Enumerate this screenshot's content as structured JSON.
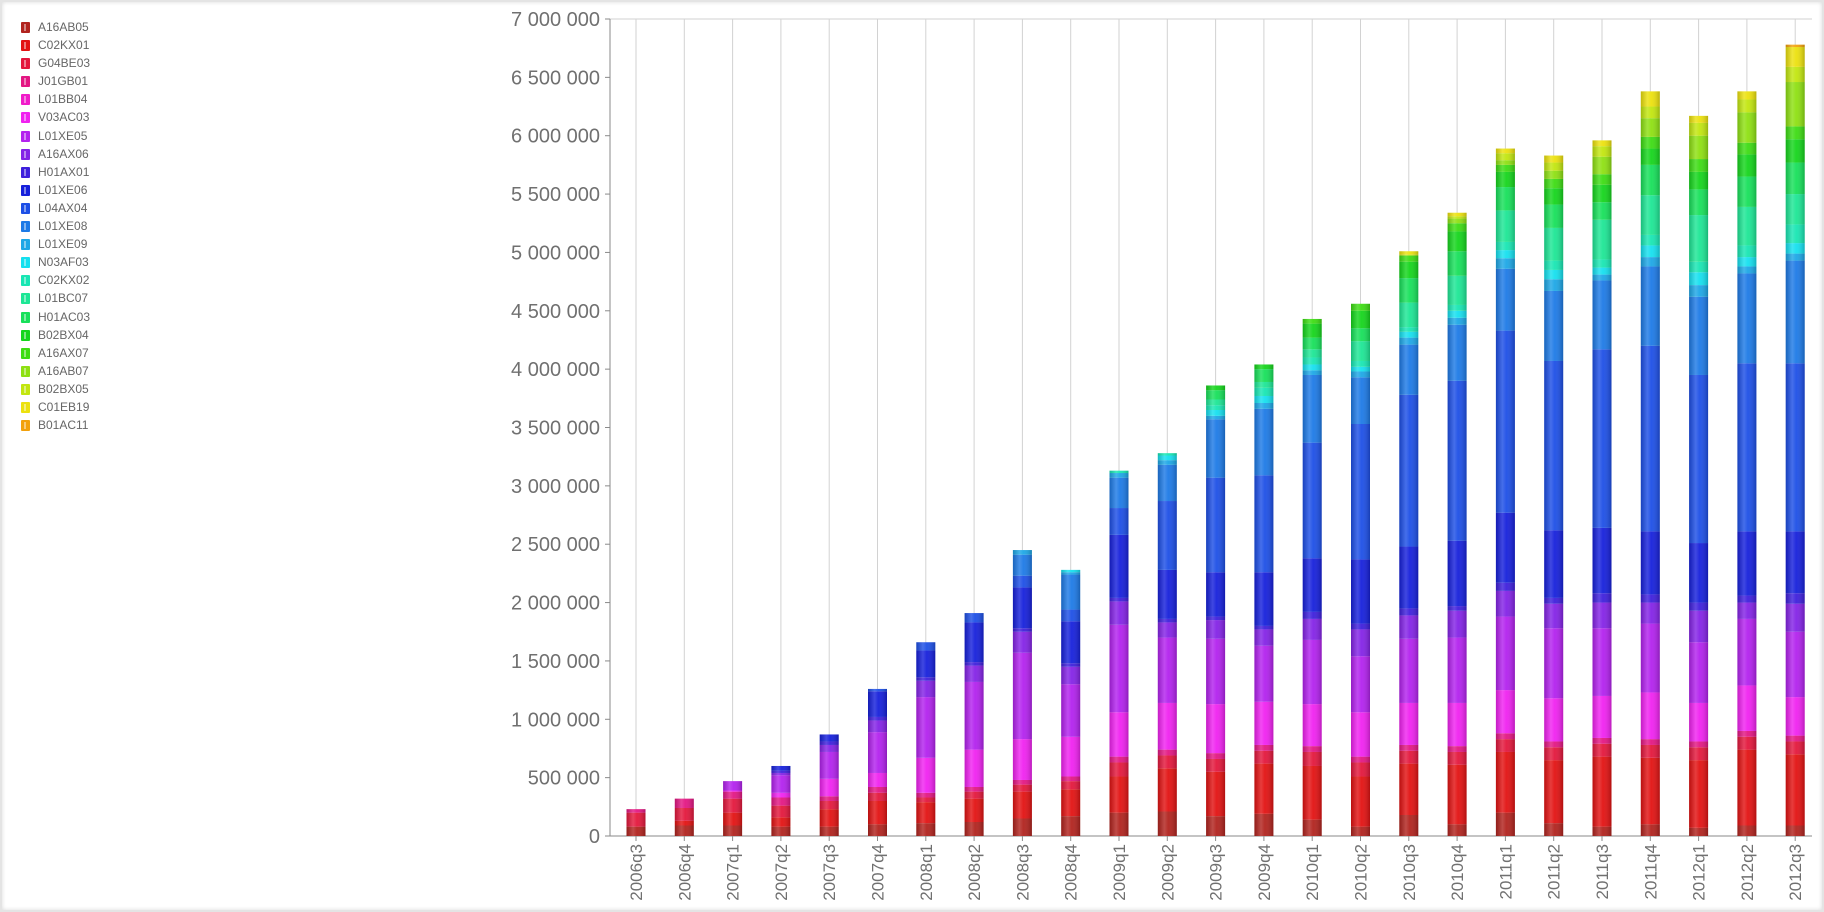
{
  "chart_data": {
    "type": "bar",
    "stacked": true,
    "title": "",
    "xlabel": "",
    "ylabel": "",
    "ylim": [
      0,
      7000000
    ],
    "y_ticks": [
      0,
      500000,
      1000000,
      1500000,
      2000000,
      2500000,
      3000000,
      3500000,
      4000000,
      4500000,
      5000000,
      5500000,
      6000000,
      6500000,
      7000000
    ],
    "y_tick_labels": [
      "0",
      "500 000",
      "1 000 000",
      "1 500 000",
      "2 000 000",
      "2 500 000",
      "3 000 000",
      "3 500 000",
      "4 000 000",
      "4 500 000",
      "5 000 000",
      "5 500 000",
      "6 000 000",
      "6 500 000",
      "7 000 000"
    ],
    "grid": "vertical",
    "legend_position": "top-left",
    "categories": [
      "2006q3",
      "2006q4",
      "2007q1",
      "2007q2",
      "2007q3",
      "2007q4",
      "2008q1",
      "2008q2",
      "2008q3",
      "2008q4",
      "2009q1",
      "2009q2",
      "2009q3",
      "2009q4",
      "2010q1",
      "2010q2",
      "2010q3",
      "2010q4",
      "2011q1",
      "2011q2",
      "2011q3",
      "2011q4",
      "2012q1",
      "2012q2",
      "2012q3"
    ],
    "series": [
      {
        "name": "A16AB05",
        "color": "#b1231e",
        "values": [
          80000,
          90000,
          90000,
          80000,
          80000,
          100000,
          110000,
          120000,
          150000,
          170000,
          200000,
          210000,
          170000,
          190000,
          140000,
          80000,
          180000,
          100000,
          200000,
          110000,
          80000,
          100000,
          70000,
          90000,
          90000
        ]
      },
      {
        "name": "C02KX01",
        "color": "#e21212",
        "values": [
          0,
          40000,
          110000,
          80000,
          150000,
          200000,
          180000,
          200000,
          230000,
          230000,
          310000,
          370000,
          380000,
          430000,
          460000,
          430000,
          440000,
          510000,
          520000,
          540000,
          600000,
          570000,
          580000,
          650000,
          610000
        ]
      },
      {
        "name": "G04BE03",
        "color": "#e3173c",
        "values": [
          120000,
          110000,
          120000,
          100000,
          70000,
          70000,
          40000,
          60000,
          60000,
          70000,
          120000,
          110000,
          110000,
          110000,
          120000,
          120000,
          110000,
          110000,
          110000,
          110000,
          110000,
          110000,
          110000,
          110000,
          110000
        ]
      },
      {
        "name": "J01GB01",
        "color": "#e31783",
        "values": [
          30000,
          80000,
          60000,
          70000,
          40000,
          50000,
          40000,
          40000,
          40000,
          40000,
          50000,
          50000,
          50000,
          50000,
          50000,
          50000,
          50000,
          50000,
          50000,
          50000,
          50000,
          50000,
          50000,
          50000,
          50000
        ]
      },
      {
        "name": "L01BB04",
        "color": "#f01bc9",
        "values": [
          0,
          0,
          0,
          0,
          0,
          0,
          0,
          0,
          0,
          0,
          0,
          0,
          0,
          0,
          0,
          0,
          0,
          0,
          0,
          0,
          0,
          0,
          0,
          0,
          0
        ]
      },
      {
        "name": "V03AC03",
        "color": "#f022f0",
        "values": [
          0,
          0,
          10000,
          40000,
          150000,
          120000,
          300000,
          320000,
          350000,
          340000,
          380000,
          400000,
          420000,
          370000,
          360000,
          380000,
          360000,
          370000,
          370000,
          370000,
          360000,
          400000,
          330000,
          390000,
          330000
        ]
      },
      {
        "name": "L01XE05",
        "color": "#b322ee",
        "values": [
          0,
          0,
          80000,
          150000,
          230000,
          350000,
          520000,
          580000,
          740000,
          450000,
          750000,
          560000,
          560000,
          480000,
          550000,
          480000,
          550000,
          560000,
          630000,
          600000,
          580000,
          590000,
          520000,
          570000,
          560000
        ]
      },
      {
        "name": "A16AX06",
        "color": "#8423e6",
        "values": [
          0,
          0,
          0,
          20000,
          60000,
          100000,
          140000,
          140000,
          180000,
          150000,
          200000,
          130000,
          160000,
          140000,
          180000,
          230000,
          200000,
          230000,
          220000,
          210000,
          220000,
          180000,
          270000,
          140000,
          240000
        ]
      },
      {
        "name": "H01AX01",
        "color": "#3e1fdc",
        "values": [
          0,
          0,
          0,
          20000,
          30000,
          30000,
          30000,
          30000,
          30000,
          30000,
          30000,
          30000,
          30000,
          30000,
          60000,
          50000,
          60000,
          40000,
          70000,
          50000,
          80000,
          70000,
          70000,
          60000,
          90000
        ]
      },
      {
        "name": "L01XE06",
        "color": "#1620db",
        "values": [
          0,
          0,
          0,
          40000,
          60000,
          220000,
          230000,
          340000,
          350000,
          360000,
          540000,
          420000,
          380000,
          460000,
          460000,
          550000,
          530000,
          560000,
          600000,
          580000,
          560000,
          540000,
          510000,
          550000,
          530000
        ]
      },
      {
        "name": "L04AX04",
        "color": "#1d4fe6",
        "values": [
          0,
          0,
          0,
          0,
          0,
          20000,
          70000,
          80000,
          100000,
          100000,
          230000,
          590000,
          810000,
          830000,
          990000,
          1160000,
          1300000,
          1370000,
          1560000,
          1450000,
          1530000,
          1590000,
          1440000,
          1440000,
          1440000
        ]
      },
      {
        "name": "L01XE08",
        "color": "#1d7ae6",
        "values": [
          0,
          0,
          0,
          0,
          0,
          0,
          0,
          0,
          180000,
          300000,
          260000,
          310000,
          500000,
          570000,
          580000,
          400000,
          430000,
          480000,
          530000,
          600000,
          590000,
          680000,
          670000,
          770000,
          880000
        ]
      },
      {
        "name": "L01XE09",
        "color": "#1da7e6",
        "values": [
          0,
          0,
          0,
          0,
          0,
          0,
          0,
          0,
          40000,
          20000,
          40000,
          40000,
          30000,
          50000,
          40000,
          50000,
          60000,
          60000,
          90000,
          100000,
          50000,
          80000,
          100000,
          60000,
          60000
        ]
      },
      {
        "name": "N03AF03",
        "color": "#15e0ef",
        "values": [
          0,
          0,
          0,
          0,
          0,
          0,
          0,
          0,
          0,
          20000,
          0,
          40000,
          50000,
          60000,
          50000,
          40000,
          50000,
          60000,
          70000,
          80000,
          60000,
          100000,
          110000,
          80000,
          90000
        ]
      },
      {
        "name": "C02KX02",
        "color": "#18e6b3",
        "values": [
          0,
          0,
          0,
          0,
          0,
          0,
          0,
          0,
          0,
          0,
          20000,
          20000,
          40000,
          70000,
          60000,
          50000,
          40000,
          50000,
          70000,
          80000,
          70000,
          90000,
          90000,
          100000,
          160000
        ]
      },
      {
        "name": "L01BC07",
        "color": "#1de695",
        "values": [
          0,
          0,
          0,
          0,
          0,
          0,
          0,
          0,
          0,
          0,
          0,
          0,
          50000,
          50000,
          70000,
          170000,
          210000,
          250000,
          270000,
          280000,
          340000,
          340000,
          400000,
          330000,
          260000
        ]
      },
      {
        "name": "H01AC03",
        "color": "#17e05a",
        "values": [
          0,
          0,
          0,
          0,
          0,
          0,
          0,
          0,
          0,
          0,
          0,
          0,
          80000,
          110000,
          100000,
          110000,
          210000,
          210000,
          200000,
          200000,
          150000,
          260000,
          220000,
          260000,
          270000
        ]
      },
      {
        "name": "B02BX04",
        "color": "#15d51c",
        "values": [
          0,
          0,
          0,
          0,
          0,
          0,
          0,
          0,
          0,
          0,
          0,
          0,
          40000,
          40000,
          120000,
          150000,
          140000,
          170000,
          130000,
          140000,
          150000,
          140000,
          150000,
          190000,
          200000
        ]
      },
      {
        "name": "A16AX07",
        "color": "#3ddc13",
        "values": [
          0,
          0,
          0,
          0,
          0,
          0,
          0,
          0,
          0,
          0,
          0,
          0,
          0,
          0,
          40000,
          60000,
          50000,
          70000,
          60000,
          80000,
          90000,
          100000,
          110000,
          100000,
          110000
        ]
      },
      {
        "name": "A16AB07",
        "color": "#8ee012",
        "values": [
          0,
          0,
          0,
          0,
          0,
          0,
          0,
          0,
          0,
          0,
          0,
          0,
          0,
          0,
          0,
          0,
          10000,
          40000,
          40000,
          70000,
          150000,
          160000,
          200000,
          260000,
          380000
        ]
      },
      {
        "name": "B02BX05",
        "color": "#c2e60f",
        "values": [
          0,
          0,
          0,
          0,
          0,
          0,
          0,
          0,
          0,
          0,
          0,
          0,
          0,
          0,
          0,
          0,
          0,
          20000,
          60000,
          70000,
          90000,
          100000,
          110000,
          110000,
          130000
        ]
      },
      {
        "name": "C01EB19",
        "color": "#ece10e",
        "values": [
          0,
          0,
          0,
          0,
          0,
          0,
          0,
          0,
          0,
          0,
          0,
          0,
          0,
          0,
          0,
          0,
          30000,
          30000,
          40000,
          60000,
          50000,
          130000,
          60000,
          70000,
          170000
        ]
      },
      {
        "name": "B01AC11",
        "color": "#f2a10c",
        "values": [
          0,
          0,
          0,
          0,
          0,
          0,
          0,
          0,
          0,
          0,
          0,
          0,
          0,
          0,
          0,
          0,
          0,
          0,
          0,
          0,
          0,
          0,
          0,
          0,
          20000
        ]
      }
    ]
  }
}
